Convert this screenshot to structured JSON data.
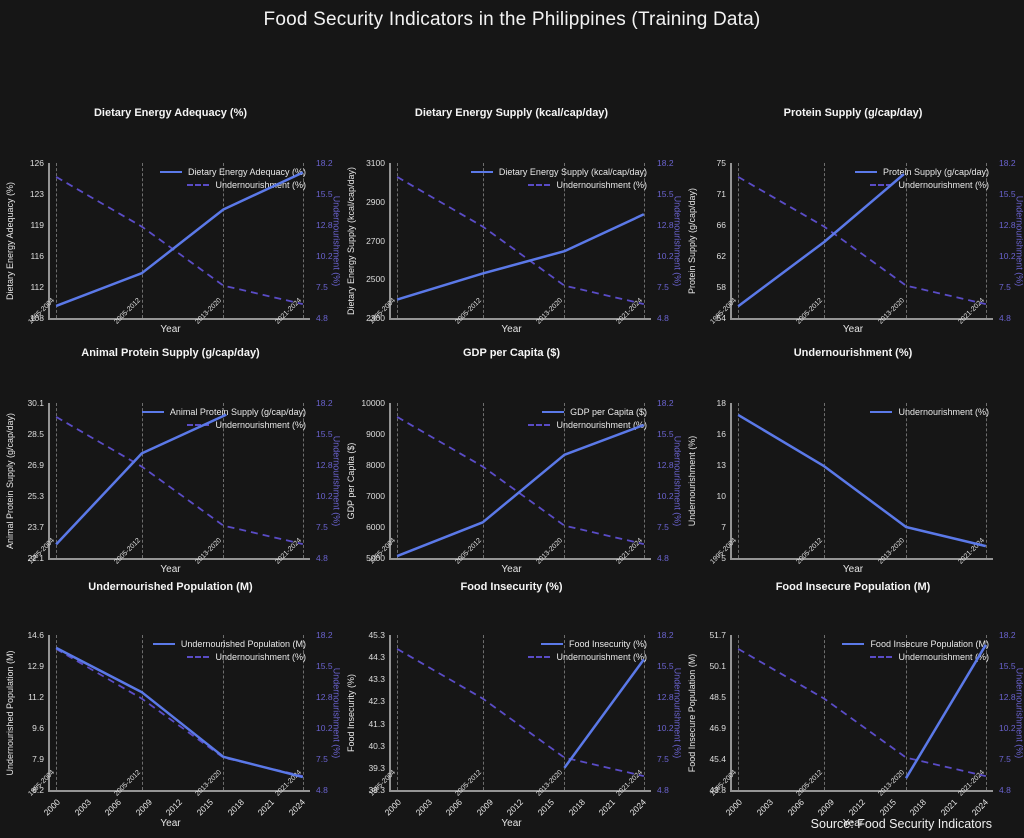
{
  "page": {
    "title": "Food Security Indicators in the Philippines (Training Data)",
    "source_note": "Source: Food Security Indicators"
  },
  "colors": {
    "background": "#161616",
    "primary_line": "#5b79e8",
    "secondary_line": "#5a4cc6",
    "secondary_axis_text": "#6a63cf",
    "period_line": "#6d6d6d",
    "axis_spine": "#959595"
  },
  "layout": {
    "x_range": [
      1999.5,
      2025
    ],
    "x_ticks": [
      2000,
      2003,
      2006,
      2009,
      2012,
      2015,
      2018,
      2021,
      2024
    ],
    "x_label": "Year",
    "period_markers": [
      {
        "label": "1995-2004",
        "year": 2000.1
      },
      {
        "label": "2005-2012",
        "year": 2008.5
      },
      {
        "label": "2013-2020",
        "year": 2016.5
      },
      {
        "label": "2021-2024",
        "year": 2024.3
      }
    ],
    "secondary_axis": {
      "title": "Undernourishment (%)",
      "range": [
        4.8,
        18.2
      ],
      "ticks": [
        18.2,
        15.5,
        12.8,
        10.2,
        7.5,
        4.8
      ]
    }
  },
  "undernourishment_overlay": {
    "name": "Undernourishment (%)",
    "x": [
      2000.1,
      2008.5,
      2016.5,
      2024.3
    ],
    "values": [
      17.0,
      12.7,
      7.6,
      6.0
    ]
  },
  "chart_data": [
    {
      "type": "line",
      "title": "Dietary Energy Adequacy (%)",
      "xlabel": "Year",
      "ylabel": "Dietary Energy Adequacy (%)",
      "y_ticks": [
        126,
        123,
        119,
        116,
        112,
        108
      ],
      "y_range": [
        108,
        126
      ],
      "show_secondary": true,
      "show_x_ticks": false,
      "series": [
        {
          "name": "Dietary Energy Adequacy (%)",
          "x": [
            2000.1,
            2008.5,
            2016.5,
            2024.3
          ],
          "values": [
            109.4,
            113.2,
            120.6,
            124.9
          ]
        }
      ]
    },
    {
      "type": "line",
      "title": "Dietary Energy Supply (kcal/cap/day)",
      "xlabel": "Year",
      "ylabel": "Dietary Energy Supply (kcal/cap/day)",
      "y_ticks": [
        3100,
        2900,
        2700,
        2500,
        2300
      ],
      "y_range": [
        2300,
        3100
      ],
      "show_secondary": true,
      "show_x_ticks": false,
      "series": [
        {
          "name": "Dietary Energy Supply (kcal/cap/day)",
          "x": [
            2000.1,
            2008.5,
            2016.5,
            2024.3
          ],
          "values": [
            2395,
            2530,
            2645,
            2835
          ]
        }
      ]
    },
    {
      "type": "line",
      "title": "Protein Supply (g/cap/day)",
      "xlabel": "Year",
      "ylabel": "Protein Supply (g/cap/day)",
      "y_ticks": [
        75,
        71,
        66,
        62,
        58,
        54
      ],
      "y_range": [
        54,
        75
      ],
      "show_secondary": true,
      "show_x_ticks": false,
      "series": [
        {
          "name": "Protein Supply (g/cap/day)",
          "x": [
            2000.1,
            2008.5,
            2016.3
          ],
          "values": [
            55.6,
            64.3,
            73.5
          ]
        }
      ]
    },
    {
      "type": "line",
      "title": "Animal Protein Supply (g/cap/day)",
      "xlabel": "Year",
      "ylabel": "Animal Protein Supply (g/cap/day)",
      "y_ticks": [
        30.1,
        28.5,
        26.9,
        25.3,
        23.7,
        22.1
      ],
      "y_range": [
        22.1,
        30.1
      ],
      "show_secondary": true,
      "show_x_ticks": false,
      "series": [
        {
          "name": "Animal Protein Supply (g/cap/day)",
          "x": [
            2000.1,
            2008.5,
            2016.8
          ],
          "values": [
            22.8,
            27.5,
            29.5
          ]
        }
      ]
    },
    {
      "type": "line",
      "title": "GDP per Capita ($)",
      "xlabel": "Year",
      "ylabel": "GDP per Capita ($)",
      "y_ticks": [
        10000,
        9000,
        8000,
        7000,
        6000,
        5000
      ],
      "y_range": [
        5000,
        10000
      ],
      "show_secondary": true,
      "show_x_ticks": false,
      "series": [
        {
          "name": "GDP per Capita ($)",
          "x": [
            2000.1,
            2008.5,
            2016.5,
            2024.3
          ],
          "values": [
            5060,
            6150,
            8330,
            9290
          ]
        }
      ]
    },
    {
      "type": "line",
      "title": "Undernourishment (%)",
      "xlabel": "Year",
      "ylabel": "Undernourishment (%)",
      "y_ticks": [
        18,
        16,
        13,
        10,
        7,
        5
      ],
      "y_range": [
        5,
        18
      ],
      "show_secondary": false,
      "show_x_ticks": false,
      "series": [
        {
          "name": "Undernourishment (%)",
          "x": [
            2000.1,
            2008.5,
            2016.5,
            2024.3
          ],
          "values": [
            17.0,
            12.7,
            7.6,
            6.0
          ]
        }
      ]
    },
    {
      "type": "line",
      "title": "Undernourished Population (M)",
      "xlabel": "Year",
      "ylabel": "Undernourished Population (M)",
      "y_ticks": [
        14.6,
        12.9,
        11.2,
        9.6,
        7.9,
        6.2
      ],
      "y_range": [
        6.2,
        14.6
      ],
      "show_secondary": true,
      "show_x_ticks": true,
      "series": [
        {
          "name": "Undernourished Population (M)",
          "x": [
            2000.1,
            2008.5,
            2016.5,
            2024.3
          ],
          "values": [
            13.9,
            11.5,
            8.0,
            6.9
          ]
        }
      ]
    },
    {
      "type": "line",
      "title": "Food Insecurity (%)",
      "xlabel": "Year",
      "ylabel": "Food Insecurity (%)",
      "y_ticks": [
        45.3,
        44.3,
        43.3,
        42.3,
        41.3,
        40.3,
        39.3,
        38.3
      ],
      "y_range": [
        38.3,
        45.3
      ],
      "show_secondary": true,
      "show_x_ticks": true,
      "series": [
        {
          "name": "Food Insecurity (%)",
          "x": [
            2016.5,
            2024.3
          ],
          "values": [
            39.3,
            44.2
          ]
        }
      ]
    },
    {
      "type": "line",
      "title": "Food Insecure Population (M)",
      "xlabel": "Year",
      "ylabel": "Food Insecure Population (M)",
      "y_ticks": [
        51.7,
        50.1,
        48.5,
        46.9,
        45.4,
        43.8
      ],
      "y_range": [
        43.8,
        51.7
      ],
      "show_secondary": true,
      "show_x_ticks": true,
      "series": [
        {
          "name": "Food Insecure Population (M)",
          "x": [
            2016.5,
            2024.3
          ],
          "values": [
            44.4,
            51.2
          ]
        }
      ]
    }
  ]
}
